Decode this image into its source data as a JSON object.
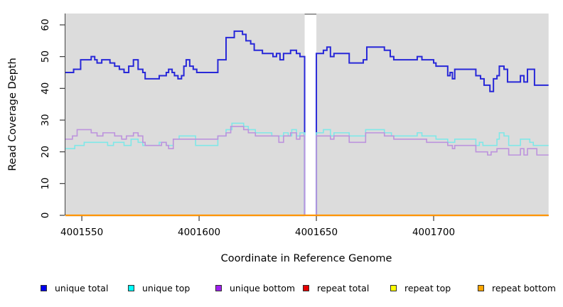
{
  "chart_data": {
    "type": "line",
    "subtype": "step",
    "xlabel": "Coordinate in Reference Genome",
    "ylabel": "Read Coverage Depth",
    "xlim": [
      4001543,
      4001749
    ],
    "ylim": [
      0,
      60
    ],
    "xticks": [
      4001550,
      4001600,
      4001650,
      4001700
    ],
    "xtick_labels": [
      "4001550",
      "4001600",
      "4001650",
      "4001700"
    ],
    "yticks": [
      0,
      10,
      20,
      30,
      40,
      50,
      60
    ],
    "ytick_labels": [
      "0",
      "10",
      "20",
      "30",
      "40",
      "50",
      "60"
    ],
    "plot_bg": "#dcdcdc",
    "grid": false,
    "legend_position": "bottom",
    "gap_region": {
      "start": 4001645,
      "end": 4001650,
      "fill": "#ffffff",
      "top_edge": "#909090",
      "note": "masked region where all series drop to 0"
    },
    "series": [
      {
        "name": "unique total",
        "legend_color": "#0000ee",
        "line_color": "#2828d8",
        "width": 2.0,
        "points": [
          [
            4001543,
            45
          ],
          [
            4001546.5,
            46
          ],
          [
            4001549.5,
            49
          ],
          [
            4001554,
            50
          ],
          [
            4001555.5,
            49
          ],
          [
            4001556.5,
            48
          ],
          [
            4001558.5,
            49
          ],
          [
            4001562,
            48
          ],
          [
            4001564,
            47
          ],
          [
            4001566,
            46
          ],
          [
            4001568,
            45
          ],
          [
            4001570,
            47
          ],
          [
            4001572,
            49
          ],
          [
            4001574,
            46
          ],
          [
            4001576,
            45
          ],
          [
            4001577,
            43
          ],
          [
            4001583,
            44
          ],
          [
            4001586,
            45
          ],
          [
            4001587,
            46
          ],
          [
            4001588.5,
            45
          ],
          [
            4001589.5,
            44
          ],
          [
            4001591,
            43
          ],
          [
            4001592.5,
            44
          ],
          [
            4001593.5,
            47
          ],
          [
            4001594.5,
            49
          ],
          [
            4001596,
            47
          ],
          [
            4001597.5,
            46
          ],
          [
            4001599,
            45
          ],
          [
            4001608,
            49
          ],
          [
            4001611.5,
            56
          ],
          [
            4001615,
            58
          ],
          [
            4001618.5,
            57
          ],
          [
            4001620,
            55
          ],
          [
            4001622,
            54
          ],
          [
            4001623.5,
            52
          ],
          [
            4001627,
            51
          ],
          [
            4001631.5,
            50
          ],
          [
            4001633,
            51
          ],
          [
            4001634.5,
            49
          ],
          [
            4001636,
            51
          ],
          [
            4001639,
            52
          ],
          [
            4001641.5,
            51
          ],
          [
            4001643,
            50
          ],
          [
            4001645,
            0
          ],
          [
            4001650,
            51
          ],
          [
            4001653,
            52
          ],
          [
            4001654.5,
            53
          ],
          [
            4001656,
            50
          ],
          [
            4001657.5,
            51
          ],
          [
            4001664,
            48
          ],
          [
            4001670,
            49
          ],
          [
            4001671.5,
            53
          ],
          [
            4001679,
            52
          ],
          [
            4001681.5,
            50
          ],
          [
            4001683,
            49
          ],
          [
            4001693,
            50
          ],
          [
            4001695,
            49
          ],
          [
            4001700,
            48
          ],
          [
            4001701,
            47
          ],
          [
            4001706,
            44
          ],
          [
            4001707,
            45
          ],
          [
            4001708,
            43
          ],
          [
            4001709,
            46
          ],
          [
            4001718,
            44
          ],
          [
            4001720,
            43
          ],
          [
            4001721.5,
            41
          ],
          [
            4001724,
            39
          ],
          [
            4001725.5,
            43
          ],
          [
            4001727,
            44
          ],
          [
            4001728,
            47
          ],
          [
            4001730,
            46
          ],
          [
            4001731.5,
            42
          ],
          [
            4001737,
            44
          ],
          [
            4001738.5,
            42
          ],
          [
            4001740,
            46
          ],
          [
            4001743,
            41
          ]
        ]
      },
      {
        "name": "unique top",
        "legend_color": "#00ffff",
        "line_color": "#7fe8e8",
        "width": 1.6,
        "points": [
          [
            4001543,
            21
          ],
          [
            4001547,
            22
          ],
          [
            4001551,
            23
          ],
          [
            4001561,
            22
          ],
          [
            4001563.5,
            23
          ],
          [
            4001568,
            22
          ],
          [
            4001571,
            24
          ],
          [
            4001574,
            23
          ],
          [
            4001576,
            22
          ],
          [
            4001583,
            23
          ],
          [
            4001586,
            22
          ],
          [
            4001589,
            24
          ],
          [
            4001591.5,
            25
          ],
          [
            4001598.5,
            22
          ],
          [
            4001608,
            25
          ],
          [
            4001611.5,
            27
          ],
          [
            4001614,
            29
          ],
          [
            4001619,
            28
          ],
          [
            4001621,
            27
          ],
          [
            4001624,
            26
          ],
          [
            4001631,
            25
          ],
          [
            4001636,
            26
          ],
          [
            4001638,
            25
          ],
          [
            4001639.5,
            27
          ],
          [
            4001641.5,
            25
          ],
          [
            4001643,
            26
          ],
          [
            4001645,
            0
          ],
          [
            4001650,
            26
          ],
          [
            4001653,
            27
          ],
          [
            4001656,
            25
          ],
          [
            4001657.5,
            26
          ],
          [
            4001664,
            25
          ],
          [
            4001671,
            27
          ],
          [
            4001679,
            26
          ],
          [
            4001682,
            25
          ],
          [
            4001693,
            26
          ],
          [
            4001695,
            25
          ],
          [
            4001701,
            24
          ],
          [
            4001706,
            23
          ],
          [
            4001709,
            24
          ],
          [
            4001718,
            22
          ],
          [
            4001719.5,
            23
          ],
          [
            4001721,
            22
          ],
          [
            4001727,
            24
          ],
          [
            4001728,
            26
          ],
          [
            4001730,
            25
          ],
          [
            4001732,
            22
          ],
          [
            4001737,
            24
          ],
          [
            4001741,
            23
          ],
          [
            4001742.5,
            22
          ]
        ]
      },
      {
        "name": "unique bottom",
        "legend_color": "#a020f0",
        "line_color": "#bd93dd",
        "width": 1.6,
        "points": [
          [
            4001543,
            24
          ],
          [
            4001546,
            25
          ],
          [
            4001548,
            27
          ],
          [
            4001554,
            26
          ],
          [
            4001556.5,
            25
          ],
          [
            4001559,
            26
          ],
          [
            4001564,
            25
          ],
          [
            4001567,
            24
          ],
          [
            4001569,
            25
          ],
          [
            4001572,
            26
          ],
          [
            4001574,
            25
          ],
          [
            4001576,
            23
          ],
          [
            4001577,
            22
          ],
          [
            4001584,
            23
          ],
          [
            4001586,
            22
          ],
          [
            4001587,
            21
          ],
          [
            4001589,
            24
          ],
          [
            4001608,
            25
          ],
          [
            4001611.5,
            26
          ],
          [
            4001613.5,
            28
          ],
          [
            4001619,
            27
          ],
          [
            4001621,
            26
          ],
          [
            4001624,
            25
          ],
          [
            4001634,
            23
          ],
          [
            4001636,
            25
          ],
          [
            4001639,
            26
          ],
          [
            4001641.5,
            24
          ],
          [
            4001643,
            25
          ],
          [
            4001645,
            0
          ],
          [
            4001650,
            25
          ],
          [
            4001656,
            24
          ],
          [
            4001657.5,
            25
          ],
          [
            4001664,
            23
          ],
          [
            4001671,
            26
          ],
          [
            4001679,
            25
          ],
          [
            4001683,
            24
          ],
          [
            4001697,
            23
          ],
          [
            4001706,
            22
          ],
          [
            4001708,
            21
          ],
          [
            4001709,
            22
          ],
          [
            4001718,
            20
          ],
          [
            4001723,
            19
          ],
          [
            4001724.5,
            20
          ],
          [
            4001727,
            21
          ],
          [
            4001732,
            19
          ],
          [
            4001737,
            21
          ],
          [
            4001738.5,
            19
          ],
          [
            4001740,
            21
          ],
          [
            4001744,
            19
          ]
        ]
      },
      {
        "name": "repeat total",
        "legend_color": "#e60000",
        "line_color": "#e60000",
        "width": 1.6,
        "points": [
          [
            4001543,
            0
          ]
        ]
      },
      {
        "name": "repeat top",
        "legend_color": "#ffff00",
        "line_color": "#ffff00",
        "width": 1.6,
        "points": [
          [
            4001543,
            0
          ]
        ]
      },
      {
        "name": "repeat bottom",
        "legend_color": "#ffa500",
        "line_color": "#ff9400",
        "width": 2.2,
        "points": [
          [
            4001543,
            0
          ]
        ]
      }
    ]
  }
}
